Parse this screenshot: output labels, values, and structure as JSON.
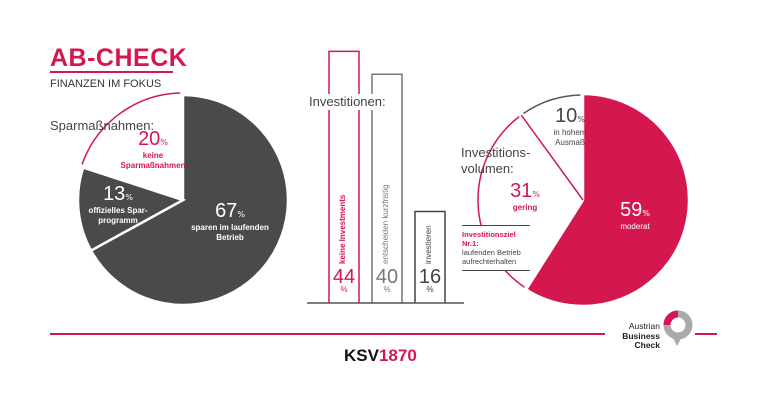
{
  "header": {
    "title": "AB-CHECK",
    "subtitle": "FINANZEN IM FOKUS"
  },
  "colors": {
    "accent": "#d5174f",
    "dark": "#4a4a4a",
    "grey": "#777777"
  },
  "chart_data": [
    {
      "type": "pie",
      "title": "Sparmaßnahmen:",
      "slices": [
        {
          "value": 67,
          "value_label": "67",
          "unit": "%",
          "label": "sparen im laufenden Betrieb",
          "color": "#4a4a4a"
        },
        {
          "value": 13,
          "value_label": "13",
          "unit": "%",
          "label": "offizielles Spar-programm",
          "label_lines": [
            "offizielles Spar-",
            "programm"
          ],
          "color": "#4a4a4a"
        },
        {
          "value": 20,
          "value_label": "20",
          "unit": "%",
          "label": "keine Sparmaßnahmen",
          "label_lines": [
            "keine",
            "Sparmaßnahmen"
          ],
          "color": "#ffffff",
          "outline": "#d5174f"
        }
      ]
    },
    {
      "type": "bar",
      "title": "Investitionen:",
      "categories": [
        "keine Investments",
        "entscheiden kurzfristig",
        "investieren"
      ],
      "values": [
        44,
        40,
        16
      ],
      "value_labels": [
        "44",
        "40",
        "16"
      ],
      "unit": "%",
      "colors": [
        "#d5174f",
        "#777777",
        "#444444"
      ]
    },
    {
      "type": "pie",
      "title": "Investitions-volumen:",
      "title_lines": [
        "Investitions-",
        "volumen:"
      ],
      "slices": [
        {
          "value": 59,
          "value_label": "59",
          "unit": "%",
          "label": "moderat",
          "color": "#d5174f"
        },
        {
          "value": 31,
          "value_label": "31",
          "unit": "%",
          "label": "gering",
          "color": "#ffffff",
          "outline": "#d5174f"
        },
        {
          "value": 10,
          "value_label": "10",
          "unit": "%",
          "label": "in hohem Ausmaß",
          "label_lines": [
            "in hohem",
            "Ausmaß"
          ],
          "color": "#ffffff",
          "outline": "#555555"
        }
      ],
      "annotation": {
        "title": "Investitionsziel Nr.1:",
        "lines": [
          "laufenden Betrieb",
          "aufrechterhalten"
        ]
      }
    }
  ],
  "footer": {
    "brand_a": "KSV",
    "brand_b": "1870",
    "logo_lines": [
      "Austrian",
      "Business",
      "Check"
    ]
  }
}
